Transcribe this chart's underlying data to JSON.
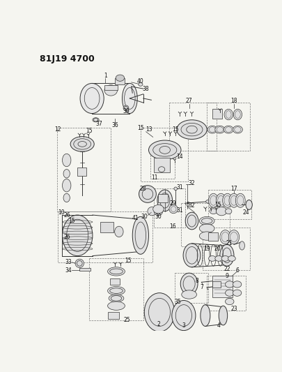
{
  "title": "81J19 4700",
  "bg_color": "#f5f5f0",
  "figsize": [
    4.06,
    5.33
  ],
  "dpi": 100,
  "lc": "#333333",
  "lc_dark": "#111111",
  "fs_label": 5.5,
  "fs_title": 9
}
